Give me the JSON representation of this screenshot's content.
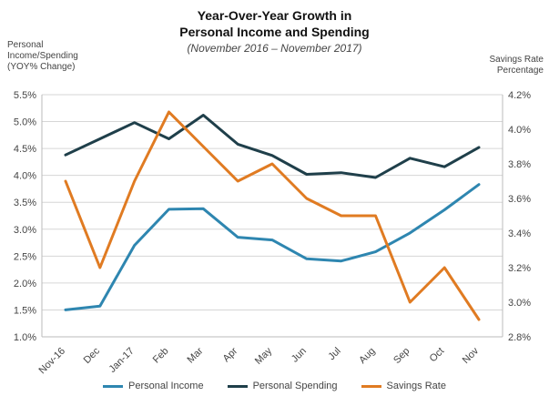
{
  "chart_data": {
    "type": "line",
    "title_line1": "Year-Over-Year Growth in",
    "title_line2": "Personal Income and Spending",
    "subtitle": "(November 2016 – November 2017)",
    "ylabel_left": [
      "Personal",
      "Income/Spending",
      "(YOY% Change)"
    ],
    "ylabel_right": [
      "Savings Rate",
      "Percentage"
    ],
    "categories": [
      "Nov-16",
      "Dec",
      "Jan-17",
      "Feb",
      "Mar",
      "Apr",
      "May",
      "Jun",
      "Jul",
      "Aug",
      "Sep",
      "Oct",
      "Nov"
    ],
    "ylim_left": [
      1.0,
      5.5
    ],
    "yticks_left": [
      "1.0%",
      "1.5%",
      "2.0%",
      "2.5%",
      "3.0%",
      "3.5%",
      "4.0%",
      "4.5%",
      "5.0%",
      "5.5%"
    ],
    "ylim_right": [
      2.8,
      4.2
    ],
    "yticks_right": [
      "2.8%",
      "3.0%",
      "3.2%",
      "3.4%",
      "3.6%",
      "3.8%",
      "4.0%",
      "4.2%"
    ],
    "grid": true,
    "legend_position": "bottom",
    "series": [
      {
        "name": "Personal Income",
        "axis": "left",
        "color": "#2e86b0",
        "values": [
          1.5,
          1.57,
          2.7,
          3.37,
          3.38,
          2.85,
          2.8,
          2.45,
          2.41,
          2.58,
          2.93,
          3.36,
          3.83
        ]
      },
      {
        "name": "Personal Spending",
        "axis": "left",
        "color": "#1f3f4a",
        "values": [
          4.38,
          4.68,
          4.98,
          4.68,
          5.12,
          4.58,
          4.37,
          4.02,
          4.05,
          3.96,
          4.32,
          4.16,
          4.52
        ]
      },
      {
        "name": "Savings Rate",
        "axis": "right",
        "color": "#e07b22",
        "values": [
          3.7,
          3.2,
          3.7,
          4.1,
          3.9,
          3.7,
          3.8,
          3.6,
          3.5,
          3.5,
          3.0,
          3.2,
          2.9
        ]
      }
    ]
  }
}
